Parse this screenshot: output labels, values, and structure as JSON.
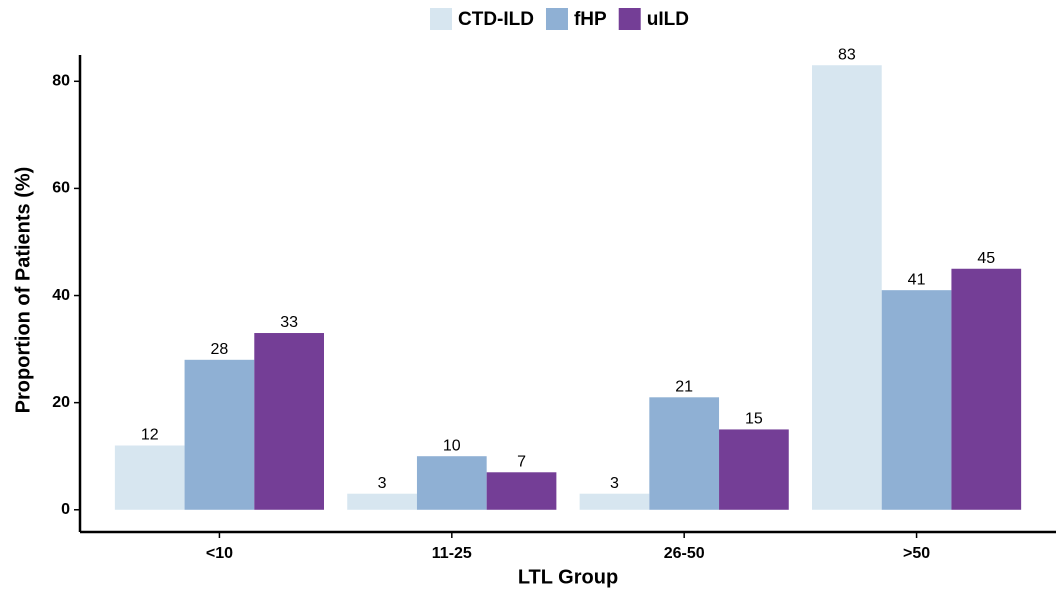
{
  "chart_data": {
    "type": "bar",
    "categories": [
      "<10",
      "11-25",
      "26-50",
      ">50"
    ],
    "series": [
      {
        "name": "CTD-ILD",
        "color": "#d7e6f0",
        "values": [
          12,
          3,
          3,
          83
        ]
      },
      {
        "name": "fHP",
        "color": "#8fb0d4",
        "values": [
          28,
          10,
          21,
          41
        ]
      },
      {
        "name": "uILD",
        "color": "#743e96",
        "values": [
          33,
          7,
          15,
          45
        ]
      }
    ],
    "x_label": "LTL Group",
    "y_label": "Proportion of Patients (%)",
    "ylim": [
      -4.15,
      87.15
    ],
    "yticks": [
      0,
      20,
      40,
      60,
      80
    ],
    "legend": "top",
    "grid": false
  }
}
